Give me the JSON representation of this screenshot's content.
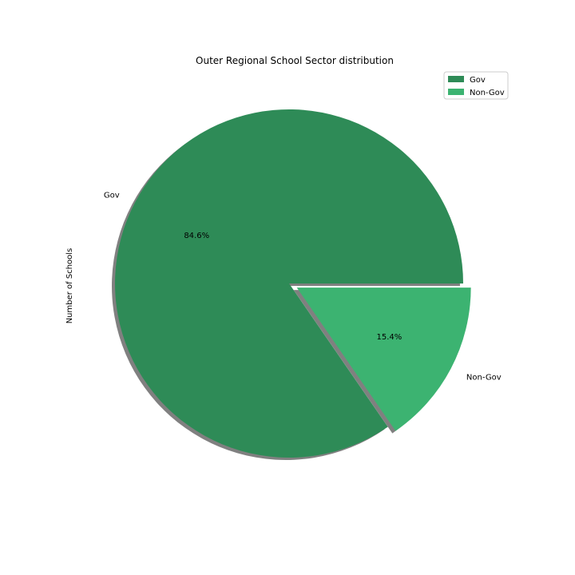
{
  "chart_data": {
    "type": "pie",
    "title": "Outer Regional School Sector distribution",
    "ylabel": "Number of Schools",
    "categories": [
      "Gov",
      "Non-Gov"
    ],
    "values": [
      84.6,
      15.4
    ],
    "percent_labels": [
      "84.6%",
      "15.4%"
    ],
    "colors": [
      "#2e8b57",
      "#3cb371"
    ],
    "explode": [
      0,
      0.05
    ],
    "shadow": true,
    "start_angle_deg": 0,
    "direction": "counterclockwise",
    "legend": {
      "placement": "top-right",
      "entries": [
        "Gov",
        "Non-Gov"
      ]
    }
  }
}
